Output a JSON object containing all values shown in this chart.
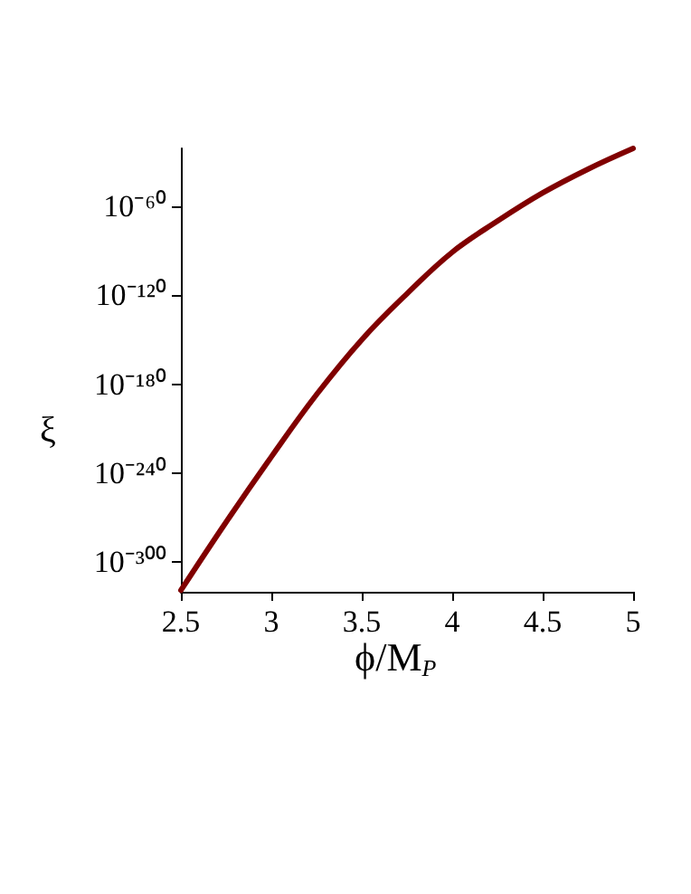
{
  "chart_data": {
    "type": "line",
    "xlabel": "ϕ/M$_{P}$",
    "ylabel": "ξ",
    "log": "y",
    "grid": false,
    "marker": "none",
    "line_style": "solid",
    "x": [
      2.5,
      2.75,
      3,
      3.25,
      3.5,
      3.75,
      4,
      4.25,
      4.5,
      4.75,
      5
    ],
    "series": [
      {
        "color": "#800000",
        "values": [
          1e-319,
          1e-273,
          1e-229,
          1e-187,
          1e-150,
          1e-119,
          1e-91,
          1e-70,
          1e-51,
          1e-35,
          1e-21
        ]
      }
    ],
    "xlim": [
      2.5,
      5
    ],
    "xticks": [
      2.5,
      3,
      3.5,
      4,
      4.5,
      5
    ],
    "ylim": [
      1e-320,
      1e-21
    ],
    "yticks": [
      {
        "value": 1e-300,
        "label": "10⁻³⁰⁰"
      },
      {
        "value": 1e-240,
        "label": "10⁻²⁴⁰"
      },
      {
        "value": 1e-180,
        "label": "10⁻¹⁸⁰"
      },
      {
        "value": 1e-120,
        "label": "10⁻¹²⁰"
      },
      {
        "value": 1e-60,
        "label": "10⁻⁶⁰"
      }
    ]
  }
}
